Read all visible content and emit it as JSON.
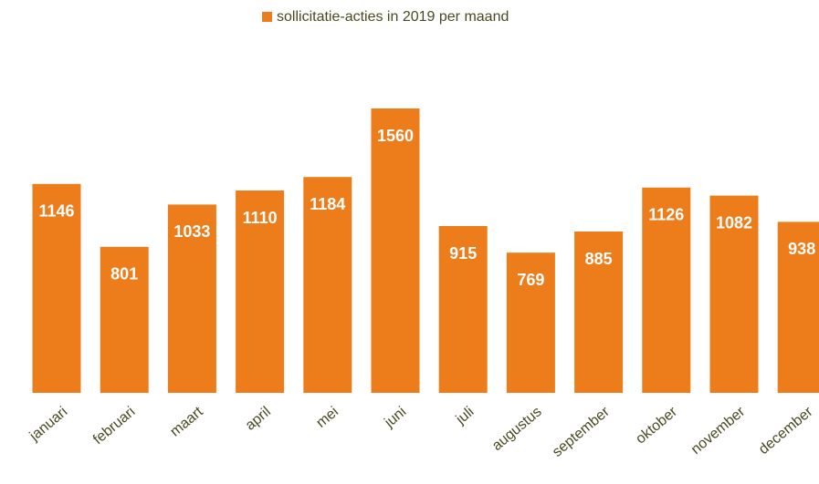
{
  "chart_data": {
    "type": "bar",
    "series": [
      {
        "name": "sollicitatie-acties in 2019 per maand",
        "color": "#ed7d1a",
        "values": [
          1146,
          801,
          1033,
          1110,
          1184,
          1560,
          915,
          769,
          885,
          1126,
          1082,
          938
        ]
      }
    ],
    "categories": [
      "januari",
      "februari",
      "maart",
      "april",
      "mei",
      "juni",
      "juli",
      "augustus",
      "september",
      "oktober",
      "november",
      "december"
    ],
    "legend": "top"
  }
}
